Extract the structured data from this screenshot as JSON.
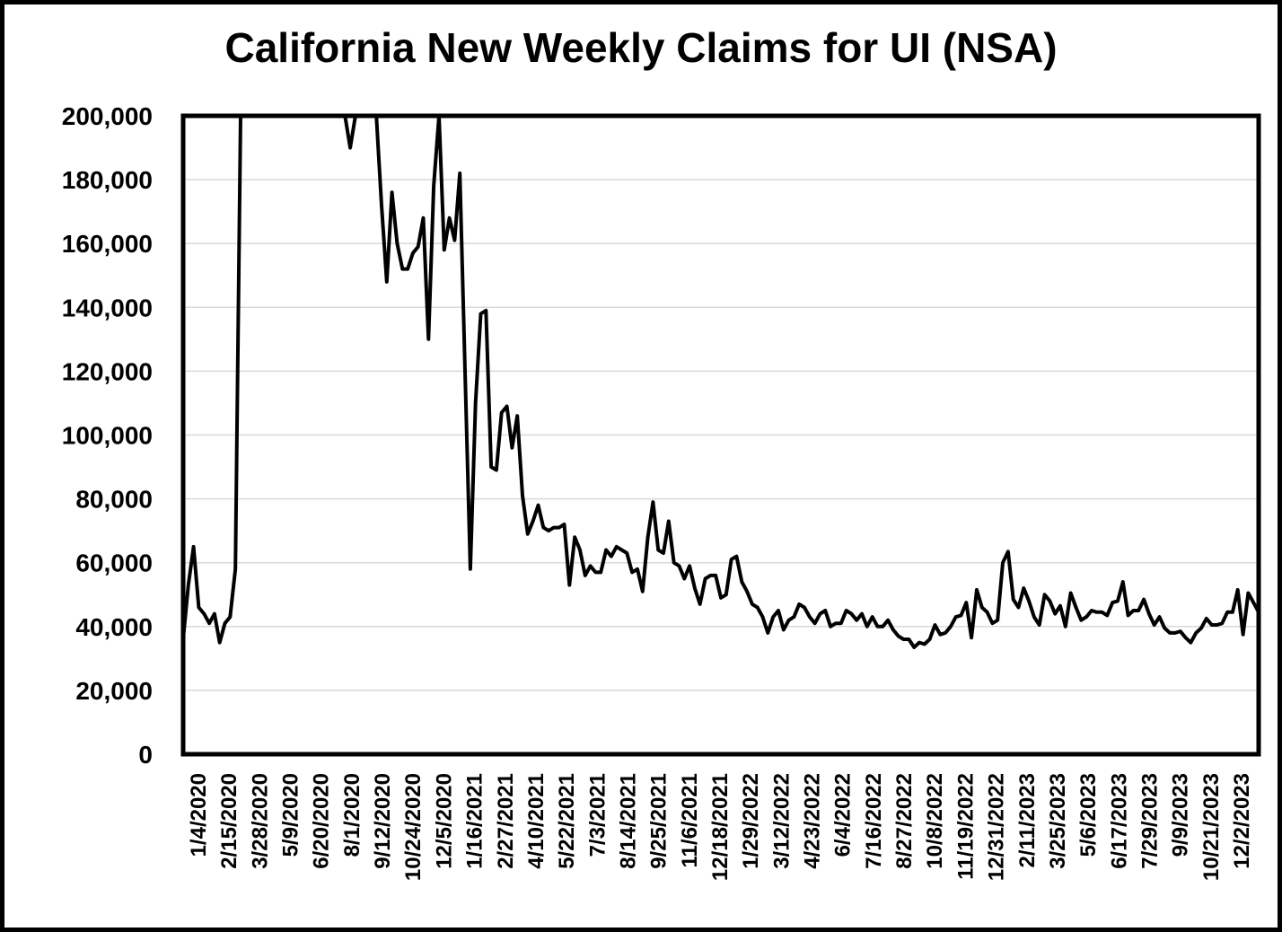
{
  "chart_data": {
    "type": "line",
    "title": "California New Weekly Claims for UI (NSA)",
    "xlabel": "",
    "ylabel": "",
    "ylim": [
      0,
      200000
    ],
    "yticks": [
      "0",
      "20,000",
      "40,000",
      "60,000",
      "80,000",
      "100,000",
      "120,000",
      "140,000",
      "160,000",
      "180,000",
      "200,000"
    ],
    "grid": true,
    "legend": "none",
    "line_color": "#000000",
    "x_tick_labels": [
      "1/4/2020",
      "2/15/2020",
      "3/28/2020",
      "5/9/2020",
      "6/20/2020",
      "8/1/2020",
      "9/12/2020",
      "10/24/2020",
      "12/5/2020",
      "1/16/2021",
      "2/27/2021",
      "4/10/2021",
      "5/22/2021",
      "7/3/2021",
      "8/14/2021",
      "9/25/2021",
      "11/6/2021",
      "12/18/2021",
      "1/29/2022",
      "3/12/2022",
      "4/23/2022",
      "6/4/2022",
      "7/16/2022",
      "8/27/2022",
      "10/8/2022",
      "11/19/2022",
      "12/31/2022",
      "2/11/2023",
      "3/25/2023",
      "5/6/2023",
      "6/17/2023",
      "7/29/2023",
      "9/9/2023",
      "10/21/2023",
      "12/2/2023"
    ],
    "series": [
      {
        "values": [
          36000,
          53000,
          65000,
          46000,
          44000,
          41000,
          44000,
          35000,
          41000,
          43000,
          58000,
          200000,
          200000,
          200000,
          200000,
          200000,
          200000,
          200000,
          200000,
          200000,
          200000,
          200000,
          200000,
          200000,
          200000,
          200000,
          200000,
          200000,
          200000,
          200000,
          200000,
          200000,
          190000,
          200000,
          200000,
          200000,
          200000,
          200000,
          172000,
          148000,
          176000,
          160000,
          152000,
          152000,
          157000,
          159000,
          168000,
          130000,
          178000,
          200000,
          158000,
          168000,
          161000,
          182000,
          120000,
          58000,
          110000,
          138000,
          139000,
          90000,
          89000,
          107000,
          109000,
          96000,
          106000,
          81000,
          69000,
          73000,
          78000,
          71000,
          70000,
          71000,
          71000,
          72000,
          53000,
          68000,
          64000,
          56000,
          59000,
          57000,
          57000,
          64000,
          62000,
          65000,
          64000,
          63000,
          57000,
          58000,
          51000,
          68000,
          79000,
          64000,
          63000,
          73000,
          60000,
          59000,
          55000,
          59000,
          52000,
          47000,
          55000,
          56000,
          56000,
          49000,
          50000,
          61000,
          62000,
          54000,
          51000,
          47000,
          46000,
          43000,
          38000,
          43000,
          45000,
          39000,
          42000,
          43000,
          47000,
          46000,
          43000,
          41000,
          44000,
          45000,
          40000,
          41000,
          41000,
          45000,
          44000,
          42000,
          44000,
          40000,
          43000,
          40000,
          40000,
          42000,
          39000,
          37000,
          36000,
          36000,
          33500,
          35000,
          34500,
          36000,
          40500,
          37500,
          38000,
          40000,
          43000,
          43500,
          47500,
          36500,
          51500,
          46000,
          44500,
          41000,
          42000,
          60000,
          63500,
          48500,
          46000,
          52000,
          48000,
          43000,
          40500,
          50000,
          48000,
          44000,
          46500,
          40000,
          50500,
          46000,
          42000,
          43000,
          45000,
          44500,
          44500,
          43500,
          47500,
          48000,
          54000,
          43500,
          45000,
          45000,
          48500,
          44000,
          40500,
          43000,
          39500,
          38000,
          38000,
          38500,
          36500,
          35000,
          38000,
          39500,
          42500,
          40500,
          40500,
          41000,
          44500,
          44500,
          51500,
          37500,
          50500,
          47500,
          44500
        ]
      }
    ]
  }
}
